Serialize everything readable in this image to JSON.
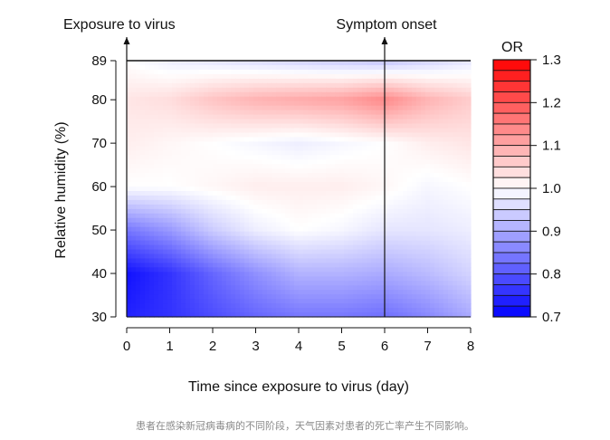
{
  "caption": "患者在感染新冠病毒病的不同阶段，天气因素对患者的死亡率产生不同影响。",
  "chart_data": {
    "type": "heatmap",
    "xlabel": "Time since exposure to virus (day)",
    "ylabel": "Relative humidity (%)",
    "x_ticks": [
      "0",
      "1",
      "2",
      "3",
      "4",
      "5",
      "6",
      "7",
      "8"
    ],
    "y_ticks": [
      "30",
      "40",
      "50",
      "60",
      "70",
      "80",
      "89"
    ],
    "xlim": [
      0,
      8
    ],
    "ylim": [
      30,
      89
    ],
    "annotations": [
      {
        "text": "Exposure to virus",
        "x": 0
      },
      {
        "text": "Symptom onset",
        "x": 6
      }
    ],
    "colorbar": {
      "title": "OR",
      "range": [
        0.7,
        1.3
      ],
      "ticks": [
        "0.7",
        "0.8",
        "0.9",
        "1.0",
        "1.1",
        "1.2",
        "1.3"
      ],
      "low_color": "#0000ff",
      "mid_color": "#ffffff",
      "high_color": "#ff0000"
    },
    "x": [
      0,
      1,
      2,
      3,
      4,
      5,
      6,
      7,
      8
    ],
    "y": [
      30,
      40,
      50,
      60,
      70,
      80,
      89
    ],
    "z": [
      [
        0.74,
        0.76,
        0.79,
        0.82,
        0.84,
        0.84,
        0.83,
        0.86,
        0.9
      ],
      [
        0.72,
        0.76,
        0.82,
        0.87,
        0.91,
        0.91,
        0.9,
        0.92,
        0.95
      ],
      [
        0.84,
        0.88,
        0.94,
        0.98,
        1.0,
        0.99,
        0.97,
        0.97,
        0.98
      ],
      [
        1.0,
        1.0,
        1.01,
        1.02,
        1.02,
        1.02,
        1.01,
        0.99,
        1.0
      ],
      [
        1.02,
        1.01,
        1.0,
        0.99,
        0.98,
        0.99,
        1.0,
        1.02,
        1.03
      ],
      [
        1.03,
        1.04,
        1.07,
        1.09,
        1.1,
        1.11,
        1.14,
        1.09,
        1.06
      ],
      [
        1.0,
        0.98,
        0.97,
        0.96,
        0.95,
        0.94,
        0.93,
        0.95,
        0.97
      ]
    ]
  }
}
